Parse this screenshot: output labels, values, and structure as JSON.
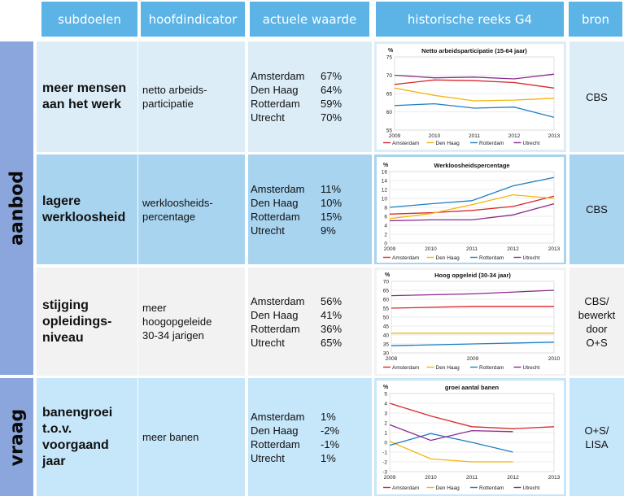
{
  "headers": {
    "subgoals": "subdoelen",
    "indicator": "hoofdindicator",
    "current": "actuele waarde",
    "history": "historische reeks G4",
    "source": "bron"
  },
  "groups": {
    "supply": "aanbod",
    "demand": "vraag"
  },
  "rows": [
    {
      "subgoal": "meer mensen\naan het werk",
      "indicator": "netto arbeids-\nparticipatie",
      "values": [
        {
          "city": "Amsterdam",
          "value": "67%"
        },
        {
          "city": "Den Haag",
          "value": "64%"
        },
        {
          "city": "Rotterdam",
          "value": "59%"
        },
        {
          "city": "Utrecht",
          "value": "70%"
        }
      ],
      "source": "CBS"
    },
    {
      "subgoal": "lagere\nwerkloosheid",
      "indicator": "werkloosheids-\npercentage",
      "values": [
        {
          "city": "Amsterdam",
          "value": "11%"
        },
        {
          "city": "Den Haag",
          "value": "10%"
        },
        {
          "city": "Rotterdam",
          "value": "15%"
        },
        {
          "city": "Utrecht",
          "value": "9%"
        }
      ],
      "source": "CBS"
    },
    {
      "subgoal": "stijging\nopleidings-\nniveau",
      "indicator": "meer\nhoogopgeleide\n30-34 jarigen",
      "values": [
        {
          "city": "Amsterdam",
          "value": "56%"
        },
        {
          "city": "Den Haag",
          "value": "41%"
        },
        {
          "city": "Rotterdam",
          "value": "36%"
        },
        {
          "city": "Utrecht",
          "value": "65%"
        }
      ],
      "source": "CBS/\nbewerkt\ndoor\nO+S"
    },
    {
      "subgoal": "banengroei\nt.o.v.\nvoorgaand\njaar",
      "indicator": "meer banen",
      "values": [
        {
          "city": "Amsterdam",
          "value": "1%"
        },
        {
          "city": "Den Haag",
          "value": "-2%"
        },
        {
          "city": "Rotterdam",
          "value": "-1%"
        },
        {
          "city": "Utrecht",
          "value": "1%"
        }
      ],
      "source": "O+S/\nLISA"
    }
  ],
  "colors": {
    "Amsterdam": "#d8282c",
    "Den Haag": "#f3b50e",
    "Rotterdam": "#1f7fc4",
    "Utrecht": "#8a2a8f"
  },
  "chart_data": [
    {
      "type": "line",
      "title": "Netto arbeidsparticipatie (15-64 jaar)",
      "ylabel": "%",
      "x": [
        "2009",
        "2010",
        "2011",
        "2012",
        "2013"
      ],
      "ylim": [
        55,
        75
      ],
      "yticks": [
        55,
        60,
        65,
        70,
        75
      ],
      "series": [
        {
          "name": "Amsterdam",
          "values": [
            67.5,
            68.7,
            68.5,
            68,
            66.5
          ]
        },
        {
          "name": "Den Haag",
          "values": [
            66.5,
            64.5,
            63,
            63.2,
            63.7
          ]
        },
        {
          "name": "Rotterdam",
          "values": [
            61.7,
            62.2,
            61,
            61.3,
            58.5
          ]
        },
        {
          "name": "Utrecht",
          "values": [
            70,
            69.3,
            69.5,
            69,
            70.3
          ]
        }
      ]
    },
    {
      "type": "line",
      "title": "Werkloosheidspercentage",
      "ylabel": "%",
      "x": [
        "2009",
        "2010",
        "2011",
        "2012",
        "2013"
      ],
      "ylim": [
        0,
        16
      ],
      "yticks": [
        0,
        2,
        4,
        6,
        8,
        10,
        12,
        14,
        16
      ],
      "series": [
        {
          "name": "Amsterdam",
          "values": [
            6.5,
            6.8,
            7.3,
            8.2,
            10.5
          ]
        },
        {
          "name": "Den Haag",
          "values": [
            5.5,
            6.6,
            8.6,
            10.8,
            10
          ]
        },
        {
          "name": "Rotterdam",
          "values": [
            8,
            8.8,
            9.5,
            12.8,
            14.7
          ]
        },
        {
          "name": "Utrecht",
          "values": [
            5,
            5.2,
            5.2,
            6.3,
            8.8
          ]
        }
      ]
    },
    {
      "type": "line",
      "title": "Hoog opgeleid (30-34 jaar)",
      "ylabel": "%",
      "x": [
        "2008",
        "2009",
        "2010"
      ],
      "ylim": [
        30,
        70
      ],
      "yticks": [
        30,
        35,
        40,
        45,
        50,
        55,
        60,
        65,
        70
      ],
      "series": [
        {
          "name": "Amsterdam",
          "values": [
            55,
            56,
            56
          ]
        },
        {
          "name": "Den Haag",
          "values": [
            41,
            41,
            41
          ]
        },
        {
          "name": "Rotterdam",
          "values": [
            34,
            35,
            36
          ]
        },
        {
          "name": "Utrecht",
          "values": [
            62,
            63,
            65
          ]
        }
      ]
    },
    {
      "type": "line",
      "title": "groei aantal banen",
      "ylabel": "%",
      "x": [
        "2009",
        "2010",
        "2011",
        "2012",
        "2013"
      ],
      "ylim": [
        -3,
        5
      ],
      "yticks": [
        -3,
        -2,
        -1,
        0,
        1,
        2,
        3,
        4,
        5
      ],
      "series": [
        {
          "name": "Amsterdam",
          "values": [
            4,
            2.7,
            1.6,
            1.4,
            1.6
          ]
        },
        {
          "name": "Den Haag",
          "values": [
            0.1,
            -1.7,
            -2,
            -2,
            null
          ]
        },
        {
          "name": "Rotterdam",
          "values": [
            -0.3,
            0.9,
            0,
            -1,
            null
          ]
        },
        {
          "name": "Utrecht",
          "values": [
            1.8,
            0.2,
            1.2,
            1.1,
            null
          ]
        }
      ]
    }
  ]
}
